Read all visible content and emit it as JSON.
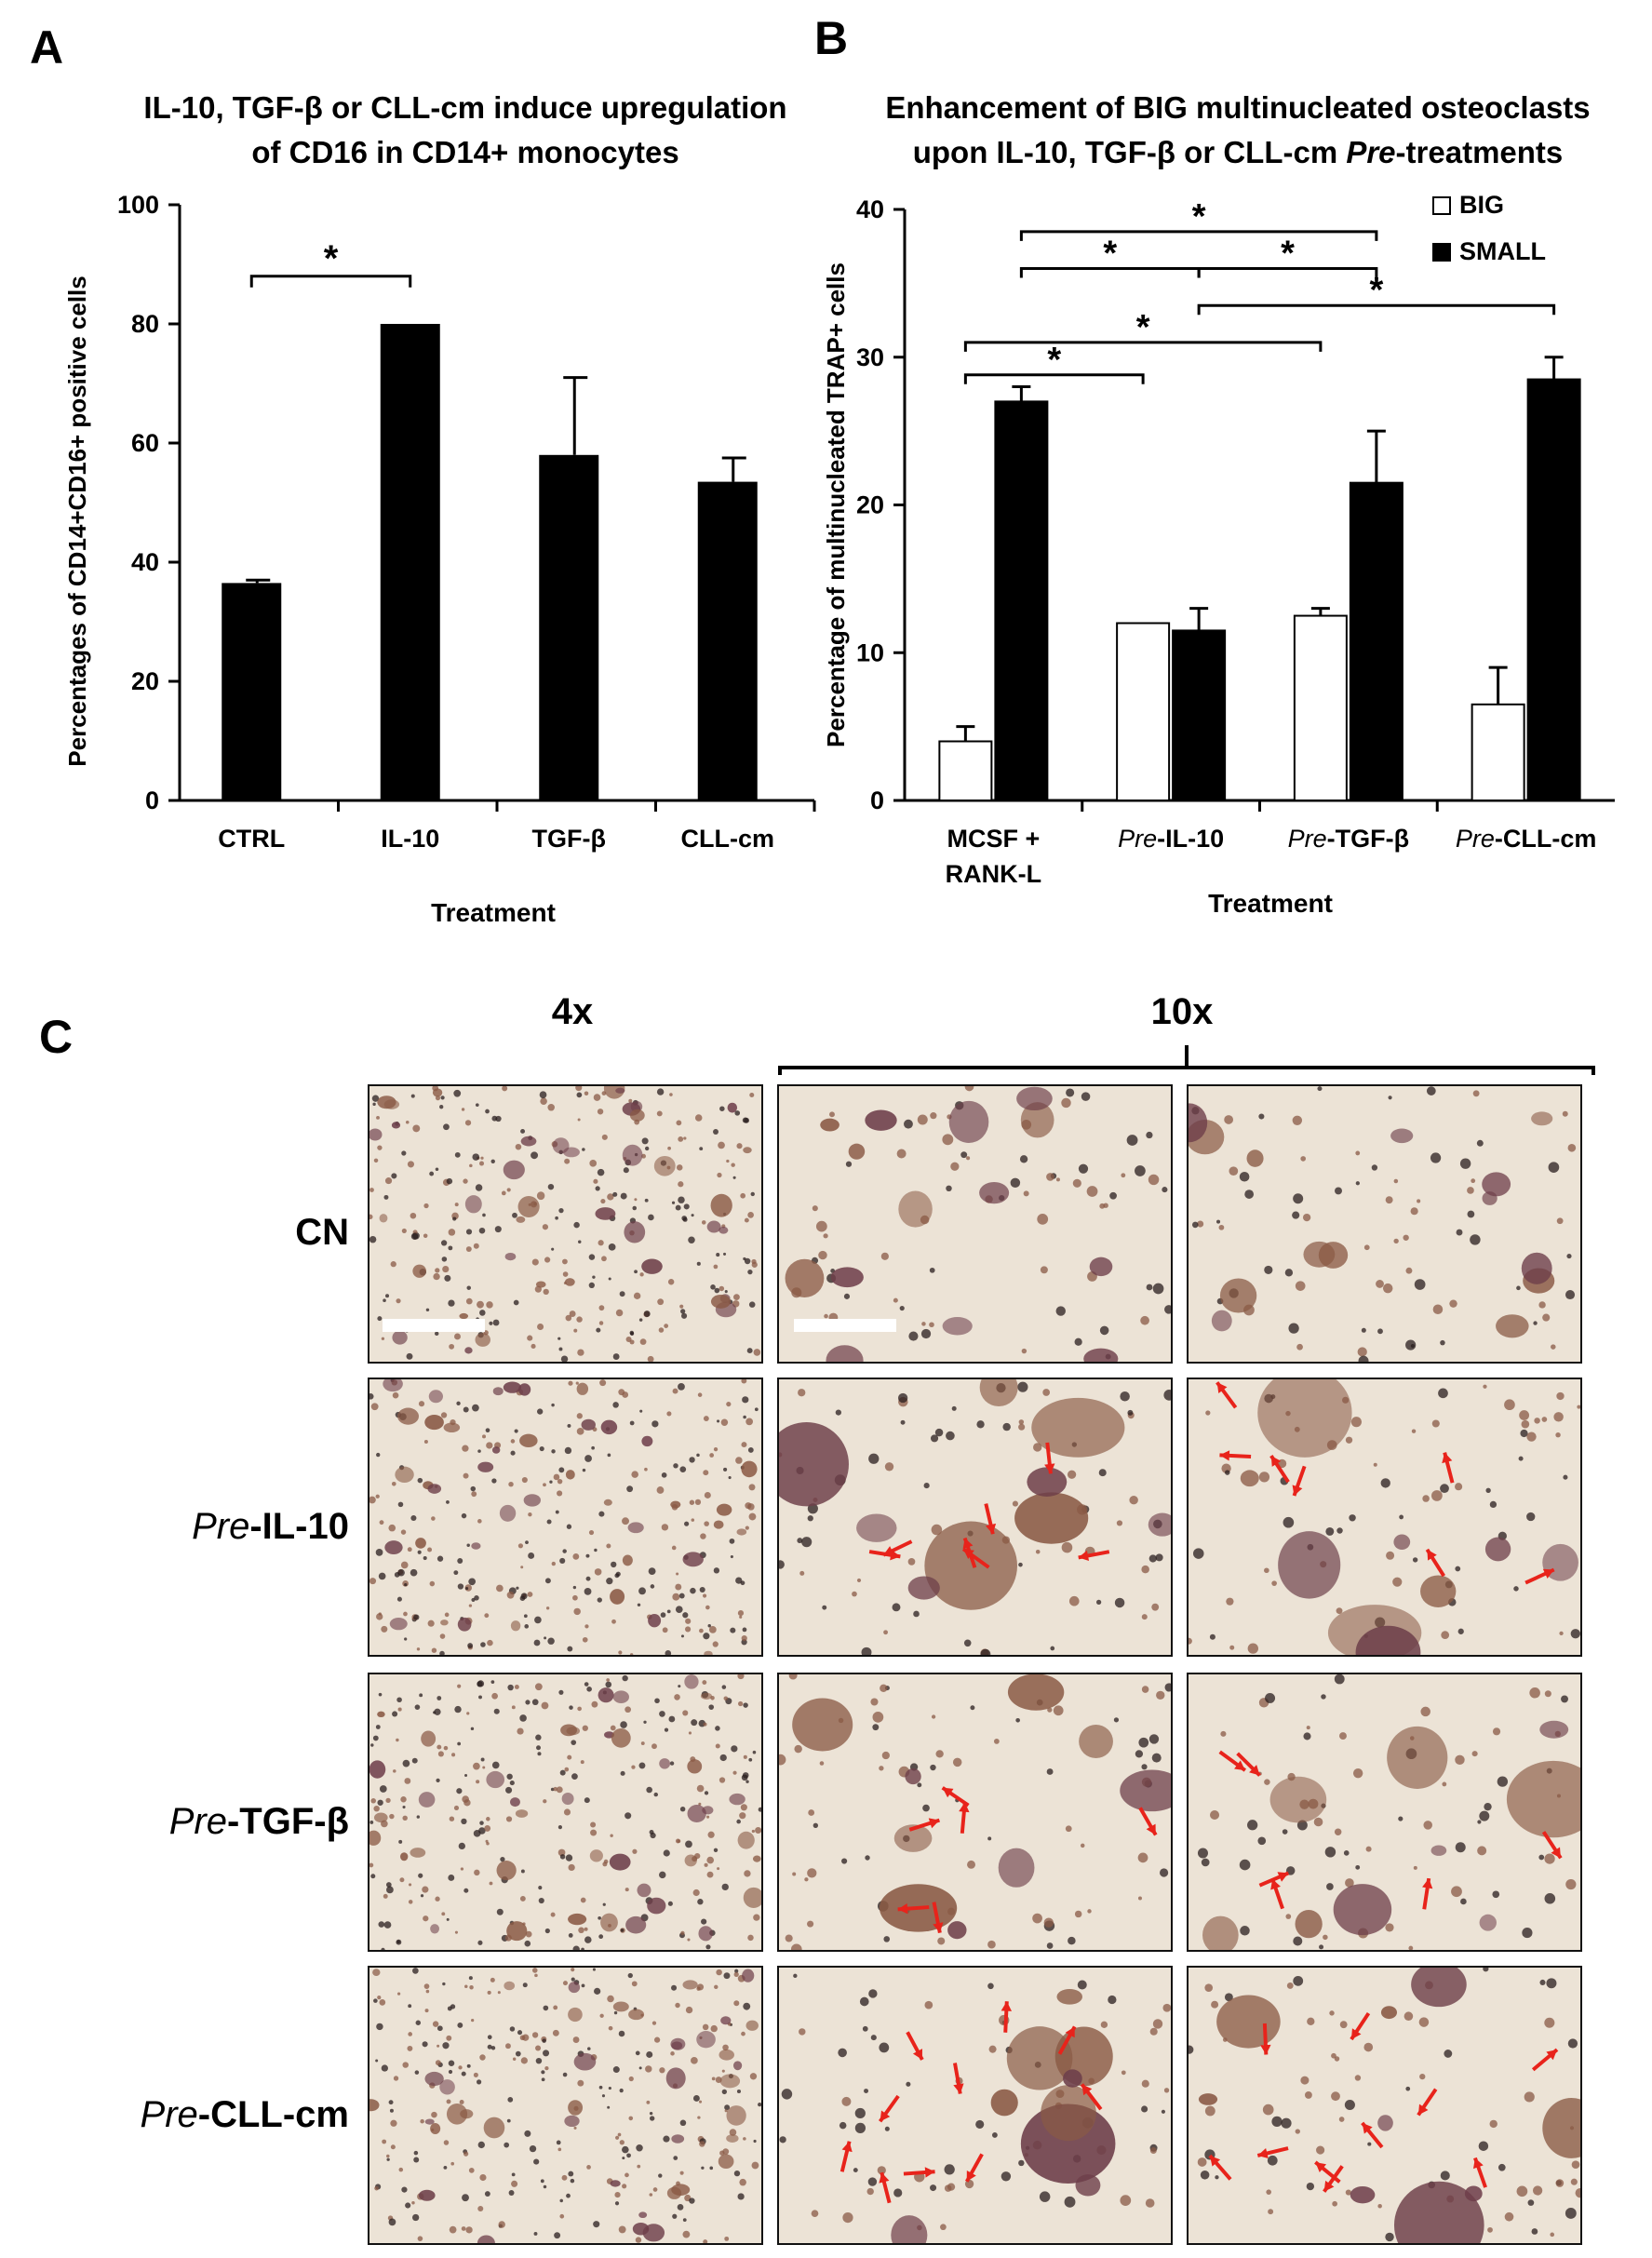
{
  "figure": {
    "panel_a_letter": "A",
    "panel_b_letter": "B",
    "panel_c_letter": "C",
    "panel_a_title_line1": "IL-10, TGF-β or CLL-cm induce upregulation",
    "panel_a_title_line2": "of CD16 in CD14+ monocytes",
    "panel_b_title_line1": "Enhancement of BIG multinucleated osteoclasts",
    "panel_b_title_line2_pre": "upon IL-10, TGF-β or CLL-cm ",
    "panel_b_title_line2_italic": "Pre",
    "panel_b_title_line2_post": "-treatments",
    "panel_c_header_4x": "4x",
    "panel_c_header_10x": "10x",
    "panel_c_rows": [
      {
        "pre": "",
        "treatment": "CN"
      },
      {
        "pre": "Pre",
        "treatment": "-IL-10"
      },
      {
        "pre": "Pre",
        "treatment": "-TGF-β"
      },
      {
        "pre": "Pre",
        "treatment": "-CLL-cm"
      }
    ],
    "colors": {
      "bar_black": "#000000",
      "bar_white": "#ffffff",
      "arrow_red": "#e8231b",
      "micro_background": "#ece3d6",
      "cell_purple": "#6e3f4a",
      "cell_brown": "#8a5a45"
    }
  },
  "chart_data": [
    {
      "type": "bar",
      "panel": "A",
      "categories": [
        "CTRL",
        "IL-10",
        "TGF-β",
        "CLL-cm"
      ],
      "values": [
        36.5,
        80,
        58,
        53.5
      ],
      "errors": [
        0.5,
        0,
        13,
        4
      ],
      "xlabel": "Treatment",
      "ylabel": "Percentages of CD14+CD16+ positive cells",
      "ylim": [
        0,
        100
      ],
      "yticks": [
        0,
        20,
        40,
        60,
        80,
        100
      ],
      "significance": [
        {
          "from": 0,
          "to": 1,
          "label": "*"
        }
      ],
      "grid": false,
      "legend": "none"
    },
    {
      "type": "bar",
      "panel": "B",
      "categories": [
        "MCSF + RANK-L",
        "Pre-IL-10",
        "Pre-TGF-β",
        "Pre-CLL-cm"
      ],
      "category_labels": [
        {
          "italic": "",
          "normal": "MCSF +",
          "line2": "RANK-L"
        },
        {
          "italic": "Pre",
          "normal": "-IL-10",
          "line2": ""
        },
        {
          "italic": "Pre",
          "normal": "-TGF-β",
          "line2": ""
        },
        {
          "italic": "Pre",
          "normal": "-CLL-cm",
          "line2": ""
        }
      ],
      "series": [
        {
          "name": "BIG",
          "values": [
            4,
            12,
            12.5,
            6.5
          ],
          "errors": [
            1,
            0,
            0.5,
            2.5
          ]
        },
        {
          "name": "SMALL",
          "values": [
            27,
            11.5,
            21.5,
            28.5
          ],
          "errors": [
            1,
            1.5,
            3.5,
            1.5
          ]
        }
      ],
      "xlabel": "Treatment",
      "ylabel": "Percentage of  multinucleated TRAP+ cells",
      "ylim": [
        0,
        40
      ],
      "yticks": [
        0,
        10,
        20,
        30,
        40
      ],
      "significance": [
        {
          "from": [
            0,
            1
          ],
          "to": [
            2,
            1
          ],
          "label": "*"
        },
        {
          "from": [
            0,
            1
          ],
          "to": [
            1,
            1
          ],
          "label": "*"
        },
        {
          "from": [
            1,
            1
          ],
          "to": [
            2,
            1
          ],
          "label": "*"
        },
        {
          "from": [
            1,
            1
          ],
          "to": [
            3,
            1
          ],
          "label": "*"
        },
        {
          "from": [
            0,
            0
          ],
          "to": [
            2,
            0
          ],
          "label": "*"
        },
        {
          "from": [
            0,
            0
          ],
          "to": [
            1,
            0
          ],
          "label": "*"
        }
      ],
      "grid": false,
      "legend": "top-right"
    }
  ]
}
